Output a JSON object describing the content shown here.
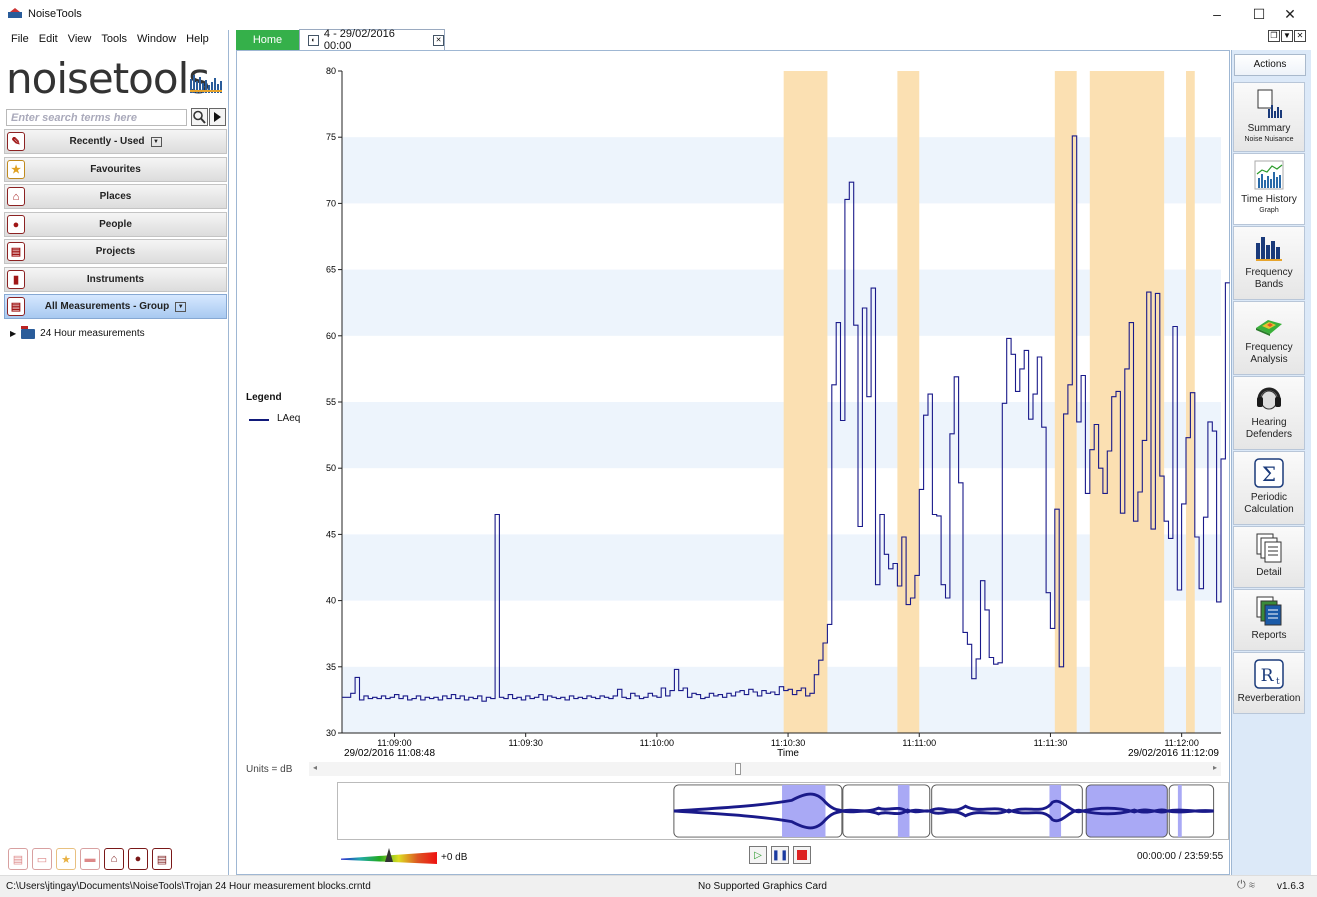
{
  "window": {
    "title": "NoiseTools",
    "controls": {
      "minimize": "–",
      "maximize": "☐",
      "close": "✕"
    }
  },
  "menu": [
    "File",
    "Edit",
    "View",
    "Tools",
    "Window",
    "Help"
  ],
  "logo": {
    "text": "noisetools"
  },
  "search": {
    "placeholder": "Enter search terms here"
  },
  "nav": {
    "items": [
      {
        "label": "Recently - Used",
        "dropdown": true,
        "icon": "pin-icon"
      },
      {
        "label": "Favourites",
        "dropdown": false,
        "icon": "star-icon"
      },
      {
        "label": "Places",
        "dropdown": false,
        "icon": "house-icon"
      },
      {
        "label": "People",
        "dropdown": false,
        "icon": "person-icon"
      },
      {
        "label": "Projects",
        "dropdown": false,
        "icon": "document-icon"
      },
      {
        "label": "Instruments",
        "dropdown": false,
        "icon": "meter-icon"
      },
      {
        "label": "All Measurements - Group",
        "dropdown": true,
        "icon": "document-icon",
        "active": true
      }
    ],
    "tree": [
      {
        "label": "24 Hour measurements"
      }
    ]
  },
  "tabs": {
    "home": "Home",
    "measurement": "4 - 29/02/2016 00:00"
  },
  "legend": {
    "title": "Legend",
    "series": [
      "LAeq"
    ],
    "series_color": "#111a7a"
  },
  "units": "Units = dB",
  "chart_data": {
    "type": "line",
    "step": true,
    "ylim": [
      30,
      80
    ],
    "yticks": [
      30,
      35,
      40,
      45,
      50,
      55,
      60,
      65,
      70,
      75,
      80
    ],
    "xlim": [
      0,
      84
    ],
    "xticks": [
      {
        "t": 12,
        "label": "11:09:00"
      },
      {
        "t": 42,
        "label": "11:09:30"
      },
      {
        "t": 72,
        "label": "11:10:00"
      },
      {
        "t": 102,
        "label": "11:10:30"
      },
      {
        "t": 132,
        "label": "11:11:00"
      },
      {
        "t": 162,
        "label": "11:11:30"
      },
      {
        "t": 192,
        "label": "11:12:00"
      }
    ],
    "xlabel": "Time",
    "start_label": "29/02/2016 11:08:48",
    "end_label": "29/02/2016 11:12:09",
    "x_start": 0,
    "x_end": 201,
    "highlights": [
      [
        101,
        111
      ],
      [
        127,
        132
      ],
      [
        163,
        168
      ],
      [
        171,
        188
      ],
      [
        193,
        195
      ]
    ],
    "series": [
      {
        "name": "LAeq",
        "values": [
          32.7,
          32.7,
          33,
          34.2,
          32.5,
          32.8,
          32.6,
          32.7,
          32.6,
          32.8,
          32.6,
          32.7,
          32.9,
          32.6,
          32.8,
          32.5,
          32.6,
          32.8,
          32.5,
          32.7,
          32.6,
          32.7,
          32.5,
          32.8,
          32.6,
          32.9,
          32.6,
          32.8,
          32.5,
          32.7,
          32.6,
          32.8,
          32.4,
          32.7,
          32.6,
          46.5,
          32.7,
          32.6,
          32.9,
          32.6,
          32.7,
          32.5,
          32.8,
          32.6,
          32.7,
          32.9,
          32.5,
          32.8,
          32.7,
          32.6,
          32.7,
          32.5,
          32.8,
          32.6,
          32.7,
          32.6,
          32.8,
          32.7,
          32.6,
          32.8,
          32.7,
          32.6,
          32.8,
          33.3,
          32.7,
          32.6,
          33,
          32.8,
          32.6,
          32.7,
          33,
          32.8,
          32.7,
          33.4,
          32.8,
          33.2,
          34.8,
          33.2,
          33.4,
          32.7,
          33,
          32.9,
          32.6,
          32.7,
          33,
          32.8,
          32.9,
          32.7,
          33,
          32.8,
          33.1,
          33.2,
          32.9,
          33.3,
          33.1,
          32.8,
          33.2,
          33,
          33.1,
          32.9,
          33.5,
          33.2,
          33.3,
          32.9,
          33.2,
          33.4,
          32.8,
          33,
          34.4,
          35.5,
          36.8,
          38.2,
          56.3,
          61,
          53.6,
          70.3,
          71.6,
          60.8,
          45.6,
          62.1,
          55.4,
          63.6,
          41.2,
          46.5,
          43.5,
          42.4,
          42.8,
          41.1,
          44.8,
          39.7,
          40.2,
          41.9,
          48.4,
          54,
          55.6,
          46.5,
          46.4,
          41.2,
          40.2,
          52.6,
          56.9,
          48.9,
          37.6,
          36.7,
          34.1,
          35.6,
          41.5,
          39.3,
          35.7,
          35.2,
          35.3,
          54.9,
          59.8,
          58.6,
          55.8,
          57.5,
          58.9,
          53.7,
          55.6,
          58.4,
          53.1,
          40.6,
          37.9,
          46.9,
          35,
          54.1,
          56.3,
          75.1,
          53.5,
          57,
          48.1,
          51.4,
          53.3,
          50,
          48.1,
          51.3,
          55.4,
          55.8,
          46.6,
          57.5,
          61,
          46,
          48.2,
          52.1,
          63.3,
          45.4,
          63.2,
          49.4,
          46,
          44.7,
          60.7,
          40.8,
          47.3,
          52.3,
          55.7,
          44.8,
          40.9,
          46.3,
          53.5,
          52.8,
          39.9,
          50.7,
          64
        ]
      }
    ]
  },
  "playback": {
    "gain": "+0 dB",
    "timecode": "00:00:00 / 23:59:55"
  },
  "actions": {
    "header": "Actions",
    "items": [
      {
        "label": "Summary",
        "sub": "Noise Nuisance",
        "icon": "summary-icon"
      },
      {
        "label": "Time History",
        "sub": "Graph",
        "icon": "time-history-icon",
        "selected": true
      },
      {
        "label": "Frequency Bands",
        "sub": "",
        "icon": "frequency-bands-icon"
      },
      {
        "label": "Frequency Analysis",
        "sub": "",
        "icon": "frequency-analysis-icon"
      },
      {
        "label": "Hearing Defenders",
        "sub": "",
        "icon": "hearing-defenders-icon"
      },
      {
        "label": "Periodic Calculation",
        "sub": "",
        "icon": "sigma-icon"
      },
      {
        "label": "Detail",
        "sub": "",
        "icon": "detail-icon"
      },
      {
        "label": "Reports",
        "sub": "",
        "icon": "reports-icon"
      },
      {
        "label": "Reverberation",
        "sub": "",
        "icon": "reverberation-icon"
      }
    ]
  },
  "status": {
    "path": "C:\\Users\\jtingay\\Documents\\NoiseTools\\Trojan 24 Hour measurement blocks.crntd",
    "graphics": "No Supported Graphics Card",
    "version": "v1.6.3"
  },
  "colors": {
    "accent": "#35b04a",
    "highlight": "#fbe0b2",
    "band": "#edf4fc",
    "line": "#1a1a8a"
  }
}
